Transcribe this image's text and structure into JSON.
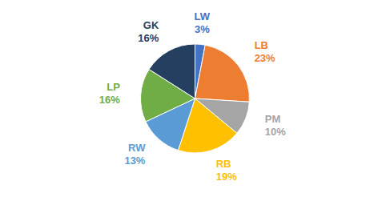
{
  "chart_data": {
    "type": "pie",
    "categories": [
      "LW",
      "LB",
      "PM",
      "RB",
      "RW",
      "LP",
      "GK"
    ],
    "values": [
      3,
      23,
      10,
      19,
      13,
      16,
      16
    ],
    "value_labels": [
      "3%",
      "23%",
      "10%",
      "19%",
      "13%",
      "16%",
      "16%"
    ],
    "colors": [
      "#4472C4",
      "#ED7D31",
      "#A5A5A5",
      "#FFC000",
      "#5B9BD5",
      "#70AD47",
      "#243F60"
    ],
    "data_labels": true
  }
}
